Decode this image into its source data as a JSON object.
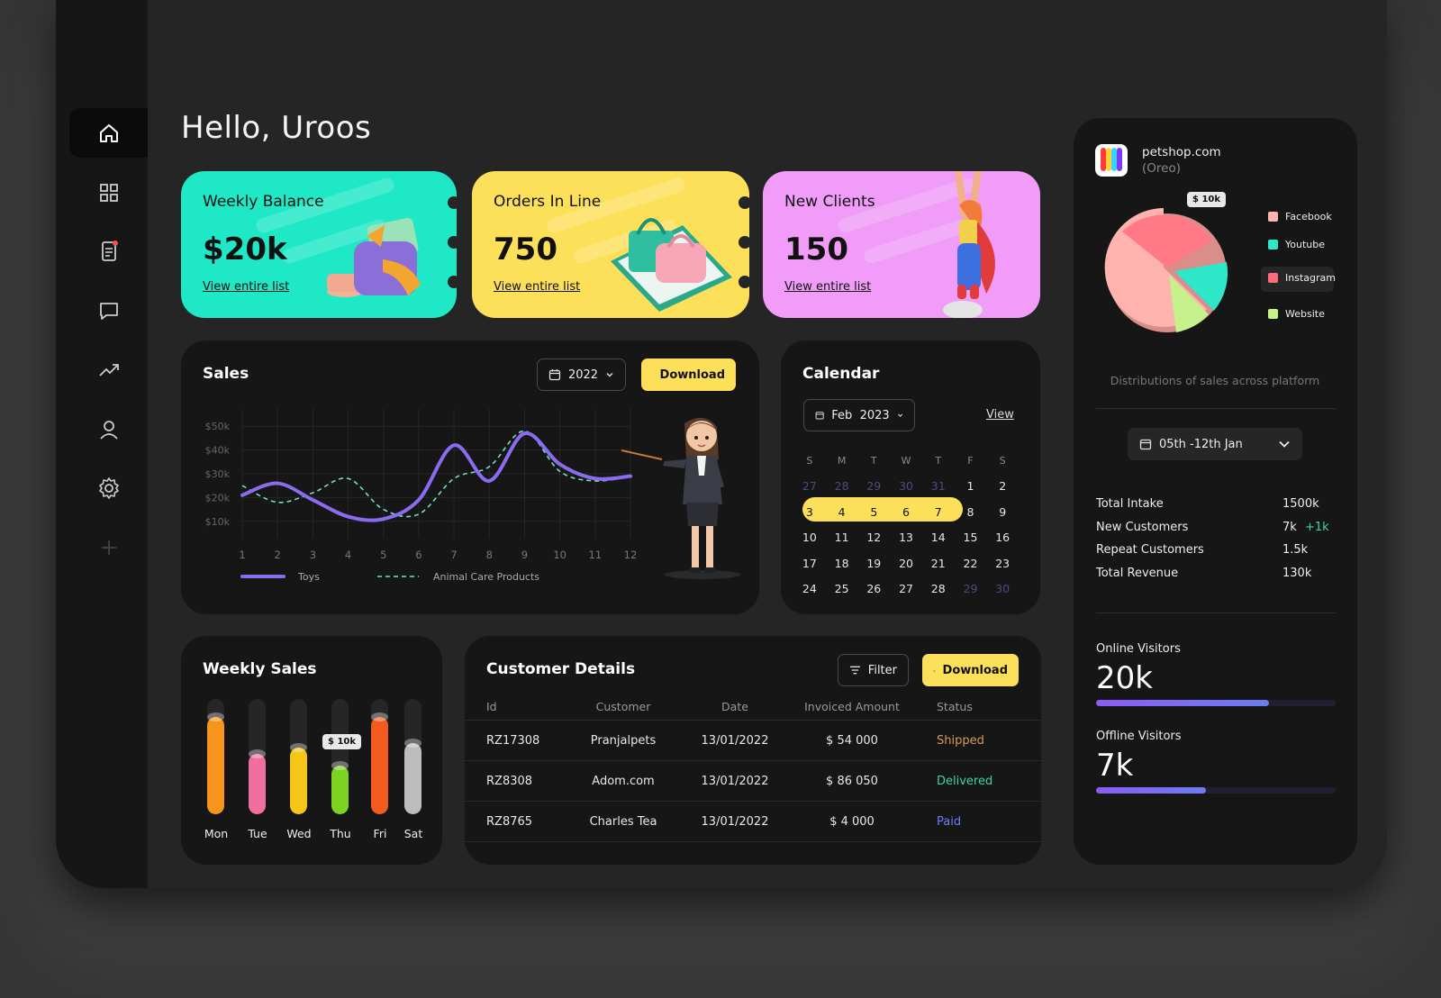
{
  "colors": {
    "bg": "#252525",
    "panel": "#161616",
    "accent": "#fde05a",
    "green": "#1ee8c6",
    "pink": "#f09cf8",
    "purple": "#8b6cf0",
    "teal": "#6ee0c0"
  },
  "greeting": "Hello, Uroos",
  "sidebar": {
    "items": [
      {
        "icon": "home-icon"
      },
      {
        "icon": "grid-icon"
      },
      {
        "icon": "document-icon"
      },
      {
        "icon": "chat-icon"
      },
      {
        "icon": "trending-icon"
      },
      {
        "icon": "user-icon"
      },
      {
        "icon": "settings-icon"
      },
      {
        "icon": "plus-icon"
      }
    ]
  },
  "cards": [
    {
      "label": "Weekly Balance",
      "value": "$20k",
      "link": "View entire list",
      "color": "#1ee8c6"
    },
    {
      "label": "Orders In Line",
      "value": "750",
      "link": "View entire list",
      "color": "#fde05a"
    },
    {
      "label": "New Clients",
      "value": "150",
      "link": "View entire list",
      "color": "#f09cf8"
    }
  ],
  "sales": {
    "title": "Sales",
    "year": "2022",
    "download": "Download",
    "chart_data": {
      "type": "line",
      "x": [
        1,
        2,
        3,
        4,
        5,
        6,
        7,
        8,
        9,
        10,
        11,
        12
      ],
      "y_ticks": [
        "$50k",
        "$40k",
        "$30k",
        "$20k",
        "$10k"
      ],
      "ylim": [
        5,
        55
      ],
      "series": [
        {
          "name": "Toys",
          "values": [
            21,
            26,
            19,
            12,
            11,
            19,
            42,
            27,
            47,
            34,
            28,
            29
          ]
        },
        {
          "name": "Animal Care Products",
          "values": [
            25,
            18,
            22,
            28,
            15,
            13,
            28,
            33,
            48,
            31,
            27,
            29
          ]
        }
      ]
    }
  },
  "calendar": {
    "title": "Calendar",
    "month": "Feb  2023",
    "view": "View",
    "weekdays": [
      "S",
      "M",
      "T",
      "W",
      "T",
      "F",
      "S"
    ],
    "rows": [
      [
        {
          "d": "27",
          "t": "m"
        },
        {
          "d": "28",
          "t": "m"
        },
        {
          "d": "29",
          "t": "m"
        },
        {
          "d": "30",
          "t": "m"
        },
        {
          "d": "31",
          "t": "m"
        },
        {
          "d": "1",
          "t": ""
        },
        {
          "d": "2",
          "t": ""
        }
      ],
      [
        {
          "d": "3",
          "t": "s"
        },
        {
          "d": "4",
          "t": "s"
        },
        {
          "d": "5",
          "t": "s"
        },
        {
          "d": "6",
          "t": "s"
        },
        {
          "d": "7",
          "t": "s"
        },
        {
          "d": "8",
          "t": ""
        },
        {
          "d": "9",
          "t": ""
        }
      ],
      [
        {
          "d": "10",
          "t": ""
        },
        {
          "d": "11",
          "t": ""
        },
        {
          "d": "12",
          "t": ""
        },
        {
          "d": "13",
          "t": ""
        },
        {
          "d": "14",
          "t": ""
        },
        {
          "d": "15",
          "t": ""
        },
        {
          "d": "16",
          "t": ""
        }
      ],
      [
        {
          "d": "17",
          "t": ""
        },
        {
          "d": "18",
          "t": ""
        },
        {
          "d": "19",
          "t": ""
        },
        {
          "d": "20",
          "t": ""
        },
        {
          "d": "21",
          "t": ""
        },
        {
          "d": "22",
          "t": ""
        },
        {
          "d": "23",
          "t": ""
        }
      ],
      [
        {
          "d": "24",
          "t": ""
        },
        {
          "d": "25",
          "t": ""
        },
        {
          "d": "26",
          "t": ""
        },
        {
          "d": "27",
          "t": ""
        },
        {
          "d": "28",
          "t": ""
        },
        {
          "d": "29",
          "t": "m"
        },
        {
          "d": "30",
          "t": "m"
        }
      ]
    ]
  },
  "weekly": {
    "title": "Weekly Sales",
    "tooltip": "$ 10k",
    "chart_data": {
      "type": "bar",
      "categories": [
        "Mon",
        "Tue",
        "Wed",
        "Thu",
        "Fri",
        "Sat"
      ],
      "values": [
        0.84,
        0.52,
        0.58,
        0.42,
        0.84,
        0.62
      ],
      "colors": [
        "#f7941d",
        "#f06ea0",
        "#f5c518",
        "#7ed321",
        "#f25b1d",
        "#bdbdbd"
      ]
    }
  },
  "customers": {
    "title": "Customer Details",
    "filter": "Filter",
    "download": "Download",
    "headers": [
      "Id",
      "Customer",
      "Date",
      "Invoiced Amount",
      "Status"
    ],
    "rows": [
      {
        "id": "RZ17308",
        "customer": "Pranjalpets",
        "date": "13/01/2022",
        "amount": "$ 54 000",
        "status": "Shipped",
        "color": "#d89a5a"
      },
      {
        "id": "RZ8308",
        "customer": "Adom.com",
        "date": "13/01/2022",
        "amount": "$ 86 050",
        "status": "Delivered",
        "color": "#3ed6a0"
      },
      {
        "id": "RZ8765",
        "customer": "Charles Tea",
        "date": "13/01/2022",
        "amount": "$ 4 000",
        "status": "Paid",
        "color": "#6f7cf5"
      }
    ]
  },
  "shop": {
    "name": "petshop.com",
    "sub": "(Oreo)",
    "pie_tooltip": "$ 10k",
    "caption": "Distributions of sales across platform",
    "range": "05th -12th Jan",
    "legend": [
      {
        "name": "Facebook",
        "color": "#ffb3ae"
      },
      {
        "name": "Youtube",
        "color": "#2ee6c8"
      },
      {
        "name": "Instagram",
        "color": "#ff6b7a"
      },
      {
        "name": "Website",
        "color": "#c5f28a"
      }
    ],
    "stats": [
      {
        "k": "Total Intake",
        "v": "1500k",
        "extra": ""
      },
      {
        "k": "New Customers",
        "v": "7k",
        "extra": "+1k"
      },
      {
        "k": "Repeat Customers",
        "v": "1.5k",
        "extra": ""
      },
      {
        "k": "Total Revenue",
        "v": "130k",
        "extra": ""
      }
    ],
    "online": {
      "label": "Online Visitors",
      "value": "20k",
      "progress": 0.72
    },
    "offline": {
      "label": "Offline Visitors",
      "value": "7k",
      "progress": 0.46
    }
  }
}
